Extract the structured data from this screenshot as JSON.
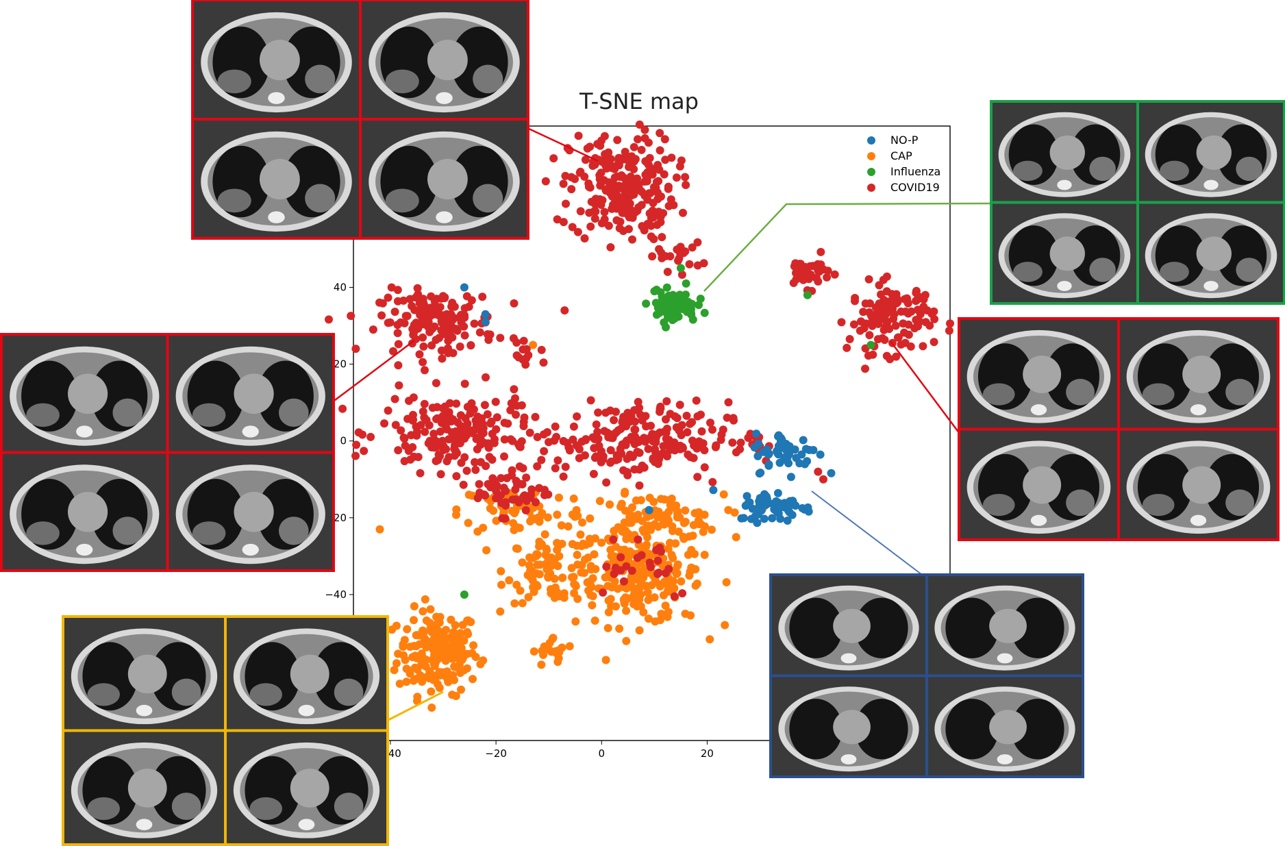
{
  "chart_data": {
    "type": "scatter",
    "title": "T-SNE map",
    "xlabel": "",
    "ylabel": "",
    "xlim": [
      -47,
      66
    ],
    "ylim": [
      -78,
      82
    ],
    "xticks": [
      -40,
      -20,
      0,
      20
    ],
    "yticks": [
      40,
      20,
      0,
      -20,
      -40
    ],
    "xtick_labels": [
      "−40",
      "−20",
      "0",
      "20"
    ],
    "ytick_labels": [
      "40",
      "20",
      "0",
      "−20",
      "−40"
    ],
    "grid": false,
    "legend_position": "top-right",
    "series": [
      {
        "name": "NO-P",
        "color": "#1f77b4",
        "clusters": [
          {
            "cx": 35,
            "cy": -3,
            "sx": 3.0,
            "sy": 2.5,
            "n": 55
          },
          {
            "cx": 33,
            "cy": -17,
            "sx": 3.5,
            "sy": 2.0,
            "n": 60
          }
        ],
        "points": [
          [
            -22,
            33
          ],
          [
            -22,
            31
          ],
          [
            9,
            -18
          ],
          [
            -26,
            40
          ]
        ]
      },
      {
        "name": "CAP",
        "color": "#ff7f0e",
        "clusters": [
          {
            "cx": -31,
            "cy": -55,
            "sx": 3.8,
            "sy": 5.5,
            "n": 190
          },
          {
            "cx": 7,
            "cy": -35,
            "sx": 6.0,
            "sy": 6.5,
            "n": 230
          },
          {
            "cx": -9,
            "cy": -33,
            "sx": 4.5,
            "sy": 4.5,
            "n": 90
          },
          {
            "cx": 10,
            "cy": -20,
            "sx": 6.5,
            "sy": 3.0,
            "n": 80
          },
          {
            "cx": -15,
            "cy": -18,
            "sx": 6.0,
            "sy": 3.5,
            "n": 70
          },
          {
            "cx": -9,
            "cy": -55,
            "sx": 2.0,
            "sy": 2.0,
            "n": 20
          }
        ],
        "points": [
          [
            -42,
            -23
          ],
          [
            24,
            -18
          ],
          [
            -13,
            25
          ]
        ]
      },
      {
        "name": "Influenza",
        "color": "#2ca02c",
        "clusters": [
          {
            "cx": 13.5,
            "cy": 35,
            "sx": 2.2,
            "sy": 2.0,
            "n": 80
          }
        ],
        "points": [
          [
            10,
            39
          ],
          [
            16,
            41
          ],
          [
            39,
            38
          ],
          [
            51,
            25
          ],
          [
            -26,
            -40
          ],
          [
            15,
            45
          ]
        ]
      },
      {
        "name": "COVID19",
        "color": "#d62728",
        "clusters": [
          {
            "cx": 4,
            "cy": 66,
            "sx": 5.0,
            "sy": 7.0,
            "n": 240
          },
          {
            "cx": 14,
            "cy": 48,
            "sx": 2.5,
            "sy": 1.8,
            "n": 20
          },
          {
            "cx": -31,
            "cy": 31,
            "sx": 5.5,
            "sy": 4.0,
            "n": 150
          },
          {
            "cx": 55,
            "cy": 32,
            "sx": 4.0,
            "sy": 4.5,
            "n": 120
          },
          {
            "cx": 39,
            "cy": 44,
            "sx": 2.2,
            "sy": 2.0,
            "n": 40
          },
          {
            "cx": -14,
            "cy": 22,
            "sx": 1.8,
            "sy": 1.5,
            "n": 12
          },
          {
            "cx": -28,
            "cy": 2,
            "sx": 7.0,
            "sy": 5.0,
            "n": 180
          },
          {
            "cx": 6,
            "cy": 0,
            "sx": 9.0,
            "sy": 5.0,
            "n": 210
          },
          {
            "cx": -17,
            "cy": -13,
            "sx": 3.5,
            "sy": 3.0,
            "n": 50
          },
          {
            "cx": 28,
            "cy": 0,
            "sx": 2.0,
            "sy": 1.5,
            "n": 10
          },
          {
            "cx": 7,
            "cy": -31,
            "sx": 6.0,
            "sy": 5.0,
            "n": 25
          }
        ],
        "points": [
          [
            -7,
            34
          ],
          [
            41,
            -8
          ],
          [
            42,
            -10
          ]
        ]
      }
    ]
  },
  "colors": {
    "covid_frame": "#e30613",
    "influenza_frame": "#1aa14a",
    "normal_frame": "#2b4f8e",
    "cap_frame": "#f2b705",
    "covid_line": "#e30613",
    "influenza_line": "#6aae43",
    "normal_line": "#4c76b8",
    "cap_line": "#f2b705"
  },
  "insets": [
    {
      "group": "COVID19",
      "image": "ct-scan-grid"
    },
    {
      "group": "COVID19",
      "image": "ct-scan-grid"
    },
    {
      "group": "COVID19",
      "image": "ct-scan-grid"
    },
    {
      "group": "Influenza",
      "image": "ct-scan-grid"
    },
    {
      "group": "NO-P",
      "image": "ct-scan-grid"
    },
    {
      "group": "CAP",
      "image": "ct-scan-grid"
    }
  ]
}
